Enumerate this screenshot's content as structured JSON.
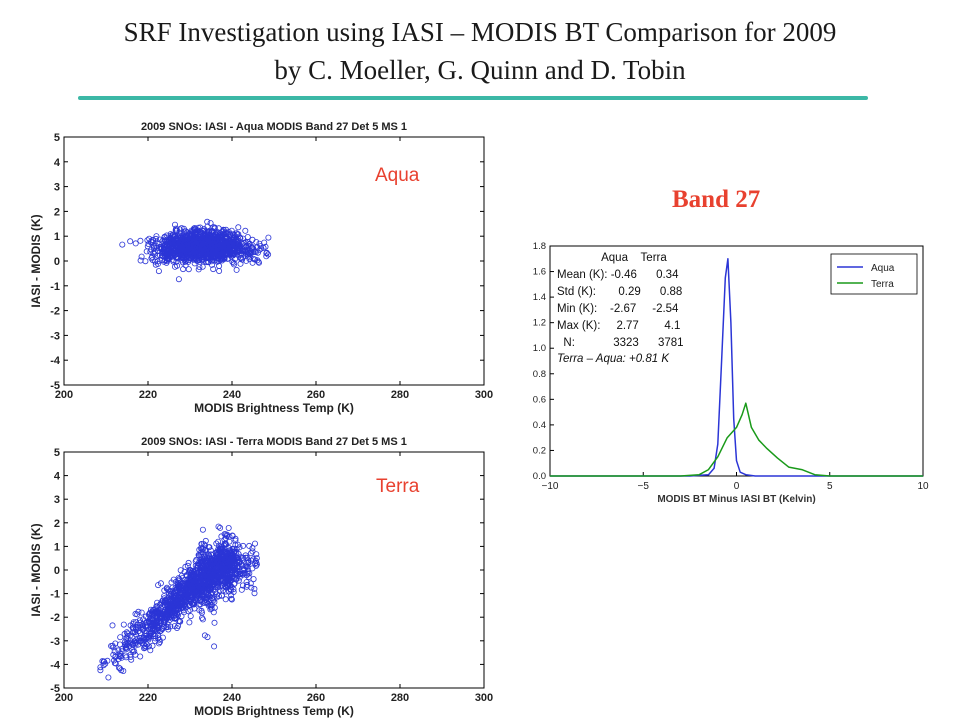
{
  "title_line1": "SRF Investigation using IASI – MODIS BT Comparison for 2009",
  "title_line2": "by C. Moeller, G. Quinn and D. Tobin",
  "band_label": "Band 27",
  "aqua_label": "Aqua",
  "terra_label": "Terra",
  "colors": {
    "accent_line": "#3cb8a6",
    "label_red": "#e8412f",
    "aqua": "#2b35d6",
    "terra": "#1a9a1a"
  },
  "chart_data": [
    {
      "type": "scatter",
      "title": "2009 SNOs: IASI - Aqua MODIS Band 27 Det 5 MS 1",
      "xlabel": "MODIS Brightness Temp (K)",
      "ylabel": "IASI - MODIS (K)",
      "xlim": [
        200,
        300
      ],
      "ylim": [
        -5,
        5
      ],
      "xticks": [
        200,
        220,
        240,
        260,
        280,
        300
      ],
      "yticks": [
        -5,
        -4,
        -3,
        -2,
        -1,
        0,
        1,
        2,
        3,
        4,
        5
      ],
      "cluster": {
        "x_range": [
          213,
          250
        ],
        "y_center": 0.5,
        "y_spread": 0.35
      },
      "n_points": 3323
    },
    {
      "type": "scatter",
      "title": "2009 SNOs: IASI - Terra MODIS Band 27 Det 5 MS 1",
      "xlabel": "MODIS Brightness Temp (K)",
      "ylabel": "IASI - MODIS (K)",
      "xlim": [
        200,
        300
      ],
      "ylim": [
        -5,
        5
      ],
      "xticks": [
        200,
        220,
        240,
        260,
        280,
        300
      ],
      "yticks": [
        -5,
        -4,
        -3,
        -2,
        -1,
        0,
        1,
        2,
        3,
        4,
        5
      ],
      "cluster": {
        "x_range": [
          208,
          248
        ],
        "trend": "increasing",
        "y_at_x210": -4.0,
        "y_at_x235": 0.0
      },
      "n_points": 3781
    },
    {
      "type": "line",
      "xlabel": "MODIS BT Minus IASI BT (Kelvin)",
      "xlim": [
        -10,
        10
      ],
      "ylim": [
        0,
        1.8
      ],
      "xticks": [
        -10,
        -5,
        0,
        5,
        10
      ],
      "yticks": [
        0.0,
        0.2,
        0.4,
        0.6,
        0.8,
        1.0,
        1.2,
        1.4,
        1.6,
        1.8
      ],
      "legend": "top-right",
      "series": [
        {
          "name": "Aqua",
          "x": [
            -10,
            -2.5,
            -1.5,
            -1.2,
            -1.0,
            -0.8,
            -0.6,
            -0.46,
            -0.3,
            -0.15,
            0.0,
            0.2,
            0.5,
            1.0,
            10
          ],
          "y": [
            0,
            0,
            0.01,
            0.06,
            0.25,
            0.9,
            1.55,
            1.7,
            1.2,
            0.45,
            0.12,
            0.03,
            0.01,
            0,
            0
          ]
        },
        {
          "name": "Terra",
          "x": [
            -10,
            -3,
            -2,
            -1.5,
            -1,
            -0.5,
            0,
            0.3,
            0.5,
            0.8,
            1.2,
            1.6,
            2.2,
            2.8,
            3.5,
            4.2,
            5,
            10
          ],
          "y": [
            0,
            0,
            0.01,
            0.05,
            0.15,
            0.3,
            0.38,
            0.48,
            0.57,
            0.38,
            0.28,
            0.22,
            0.14,
            0.07,
            0.05,
            0.01,
            0,
            0
          ]
        }
      ],
      "stats_header": [
        "Aqua",
        "Terra"
      ],
      "stats": [
        {
          "label": "Mean (K):",
          "aqua": "-0.46",
          "terra": "0.34"
        },
        {
          "label": "Std (K):",
          "aqua": "0.29",
          "terra": "0.88"
        },
        {
          "label": "Min (K):",
          "aqua": "-2.67",
          "terra": "-2.54"
        },
        {
          "label": "Max (K):",
          "aqua": "2.77",
          "terra": "4.1"
        },
        {
          "label": "N:",
          "aqua": "3323",
          "terra": "3781"
        }
      ],
      "annotation": "Terra – Aqua: +0.81 K"
    }
  ]
}
